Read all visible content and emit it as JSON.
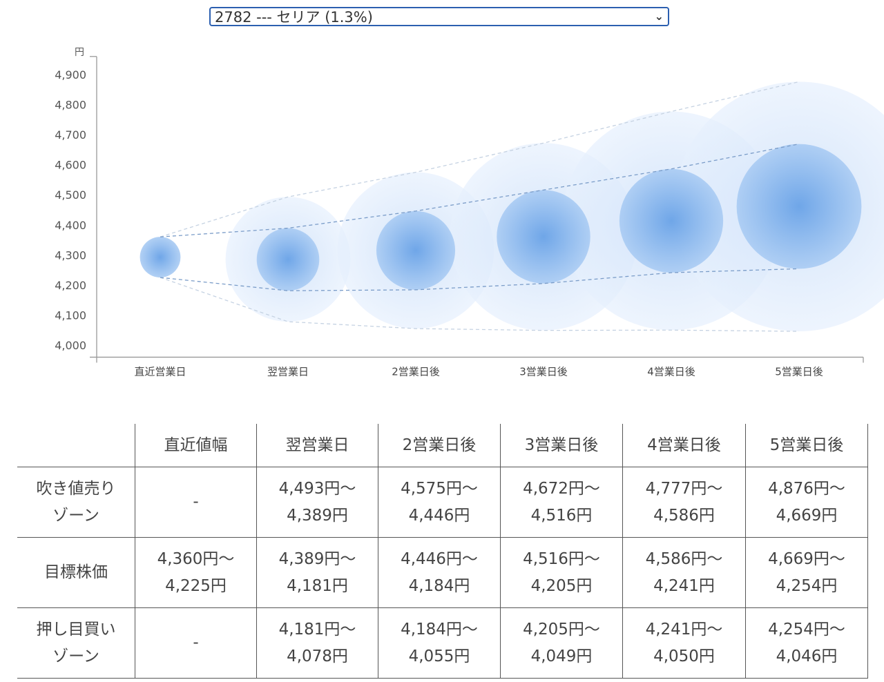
{
  "selector": {
    "value": "2782 --- セリア (1.3%)",
    "icon": "chevron-down-icon"
  },
  "chart_data": {
    "type": "bubble-range",
    "ylabel": "円",
    "ylim": [
      3960,
      4960
    ],
    "yticks": [
      "4,000",
      "4,100",
      "4,200",
      "4,300",
      "4,400",
      "4,500",
      "4,600",
      "4,700",
      "4,800",
      "4,900"
    ],
    "ytick_values": [
      4000,
      4100,
      4200,
      4300,
      4400,
      4500,
      4600,
      4700,
      4800,
      4900
    ],
    "categories": [
      "直近営業日",
      "翌営業日",
      "2営業日後",
      "3営業日後",
      "4営業日後",
      "5営業日後"
    ],
    "target_high": [
      4360,
      4389,
      4446,
      4516,
      4586,
      4669
    ],
    "target_low": [
      4225,
      4181,
      4184,
      4205,
      4241,
      4254
    ],
    "sell_high": [
      null,
      4493,
      4575,
      4672,
      4777,
      4876
    ],
    "buy_low": [
      null,
      4078,
      4055,
      4049,
      4050,
      4046
    ],
    "colors": {
      "inner": "#6fa6e8",
      "outer": "#d6e6fb",
      "target_line": "#7a9cc8",
      "zone_line": "#c5d2e2"
    }
  },
  "table": {
    "headers": [
      "",
      "直近値幅",
      "翌営業日",
      "2営業日後",
      "3営業日後",
      "4営業日後",
      "5営業日後"
    ],
    "rows": [
      {
        "label": [
          "吹き値売り",
          "ゾーン"
        ],
        "cells": [
          [
            "-"
          ],
          [
            "4,493円〜",
            "4,389円"
          ],
          [
            "4,575円〜",
            "4,446円"
          ],
          [
            "4,672円〜",
            "4,516円"
          ],
          [
            "4,777円〜",
            "4,586円"
          ],
          [
            "4,876円〜",
            "4,669円"
          ]
        ]
      },
      {
        "label": [
          "目標株価"
        ],
        "cells": [
          [
            "4,360円〜",
            "4,225円"
          ],
          [
            "4,389円〜",
            "4,181円"
          ],
          [
            "4,446円〜",
            "4,184円"
          ],
          [
            "4,516円〜",
            "4,205円"
          ],
          [
            "4,586円〜",
            "4,241円"
          ],
          [
            "4,669円〜",
            "4,254円"
          ]
        ]
      },
      {
        "label": [
          "押し目買い",
          "ゾーン"
        ],
        "cells": [
          [
            "-"
          ],
          [
            "4,181円〜",
            "4,078円"
          ],
          [
            "4,184円〜",
            "4,055円"
          ],
          [
            "4,205円〜",
            "4,049円"
          ],
          [
            "4,241円〜",
            "4,050円"
          ],
          [
            "4,254円〜",
            "4,046円"
          ]
        ]
      }
    ]
  }
}
